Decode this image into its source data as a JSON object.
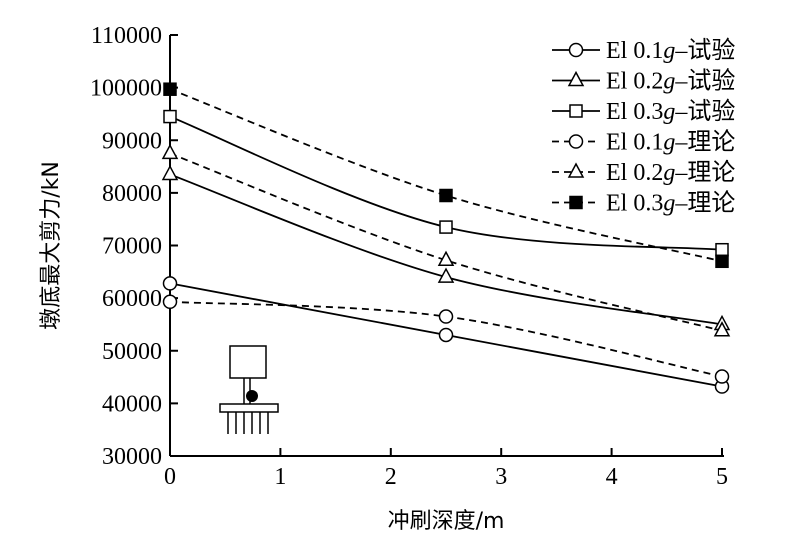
{
  "chart_data": {
    "type": "line",
    "xlabel": "冲刷深度/m",
    "ylabel": "墩底最大剪力/kN",
    "xlim": [
      0,
      5
    ],
    "ylim": [
      30000,
      110000
    ],
    "x_ticks": [
      "0",
      "1",
      "2",
      "3",
      "4",
      "5"
    ],
    "y_ticks": [
      "30000",
      "40000",
      "50000",
      "60000",
      "70000",
      "80000",
      "90000",
      "100000",
      "110000"
    ],
    "grid": false,
    "legend_position": "top-right",
    "x": [
      0,
      2.5,
      5
    ],
    "series": [
      {
        "name": "El 0.1g–试验",
        "name_parts": [
          "El 0.1",
          "g",
          "–试验"
        ],
        "values": [
          62800,
          53000,
          43200
        ],
        "line": "solid",
        "marker": "circle-open"
      },
      {
        "name": "El 0.2g–试验",
        "name_parts": [
          "El 0.2",
          "g",
          "–试验"
        ],
        "values": [
          83500,
          64000,
          55000
        ],
        "line": "solid",
        "marker": "triangle-open"
      },
      {
        "name": "El 0.3g–试验",
        "name_parts": [
          "El 0.3",
          "g",
          "–试验"
        ],
        "values": [
          94500,
          73500,
          69200
        ],
        "line": "solid",
        "marker": "square-open"
      },
      {
        "name": "El 0.1g–理论",
        "name_parts": [
          "El 0.1",
          "g",
          "–理论"
        ],
        "values": [
          59300,
          56500,
          45100
        ],
        "line": "dashed",
        "marker": "circle-open"
      },
      {
        "name": "El 0.2g–理论",
        "name_parts": [
          "El 0.2",
          "g",
          "–理论"
        ],
        "values": [
          87500,
          67200,
          53800
        ],
        "line": "dashed",
        "marker": "triangle-open"
      },
      {
        "name": "El 0.3g–理论",
        "name_parts": [
          "El 0.3",
          "g",
          "–理论"
        ],
        "values": [
          99700,
          79500,
          67000
        ],
        "line": "dashed",
        "marker": "square-filled"
      }
    ],
    "inset": "pier-on-pile-foundation-sketch"
  }
}
